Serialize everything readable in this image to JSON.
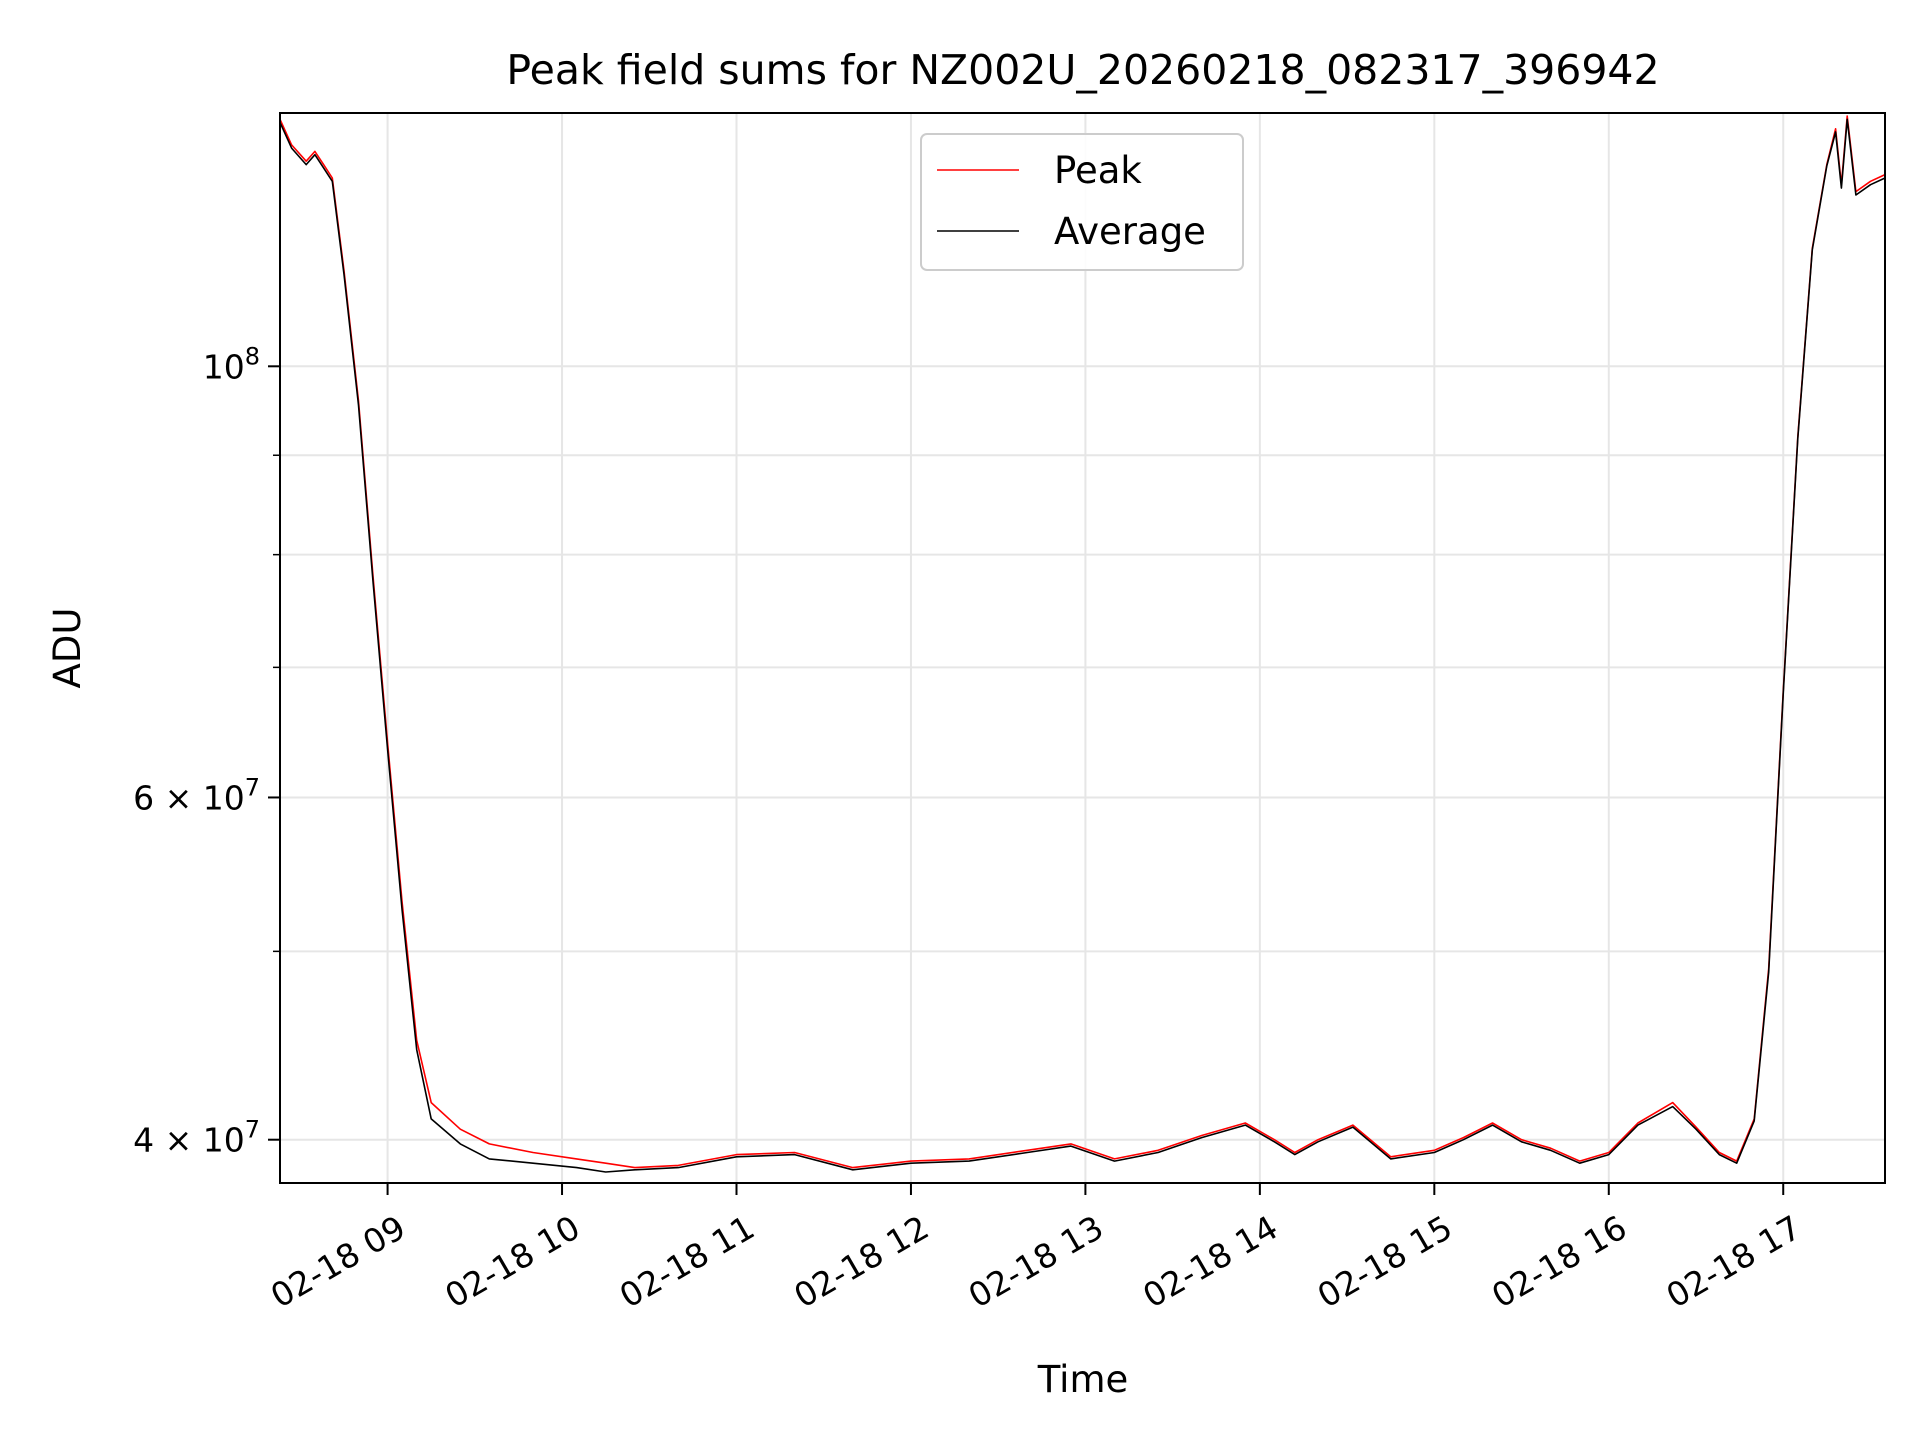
{
  "chart_data": {
    "type": "line",
    "title": "Peak field sums for NZ002U_20260218_082317_396942",
    "xlabel": "Time",
    "ylabel": "ADU",
    "y_scale": "log",
    "grid": true,
    "legend_position": "upper center",
    "x_range": [
      "2026-02-18 08:23",
      "2026-02-18 17:35"
    ],
    "y_range": [
      38000000,
      135000000
    ],
    "x_ticks": [
      {
        "value": "2026-02-18 09:00",
        "label": "02-18 09"
      },
      {
        "value": "2026-02-18 10:00",
        "label": "02-18 10"
      },
      {
        "value": "2026-02-18 11:00",
        "label": "02-18 11"
      },
      {
        "value": "2026-02-18 12:00",
        "label": "02-18 12"
      },
      {
        "value": "2026-02-18 13:00",
        "label": "02-18 13"
      },
      {
        "value": "2026-02-18 14:00",
        "label": "02-18 14"
      },
      {
        "value": "2026-02-18 15:00",
        "label": "02-18 15"
      },
      {
        "value": "2026-02-18 16:00",
        "label": "02-18 16"
      },
      {
        "value": "2026-02-18 17:00",
        "label": "02-18 17"
      }
    ],
    "y_ticks": [
      {
        "value": 40000000,
        "mantissa": "4",
        "times": "×",
        "base": "10",
        "exp": "7"
      },
      {
        "value": 60000000,
        "mantissa": "6",
        "times": "×",
        "base": "10",
        "exp": "7"
      },
      {
        "value": 100000000,
        "mantissa": "",
        "times": "",
        "base": "10",
        "exp": "8"
      }
    ],
    "y_minor_ticks": [
      50000000,
      70000000,
      80000000,
      90000000
    ],
    "series": [
      {
        "name": "Peak",
        "color": "#ff0000",
        "points": [
          [
            "2026-02-18 08:23",
            134000000
          ],
          [
            "2026-02-18 08:27",
            130000000
          ],
          [
            "2026-02-18 08:32",
            127500000
          ],
          [
            "2026-02-18 08:35",
            129000000
          ],
          [
            "2026-02-18 08:38",
            127000000
          ],
          [
            "2026-02-18 08:41",
            125000000
          ],
          [
            "2026-02-18 08:45",
            112000000
          ],
          [
            "2026-02-18 08:50",
            96000000
          ],
          [
            "2026-02-18 08:55",
            78000000
          ],
          [
            "2026-02-18 09:00",
            64000000
          ],
          [
            "2026-02-18 09:05",
            53000000
          ],
          [
            "2026-02-18 09:10",
            45000000
          ],
          [
            "2026-02-18 09:15",
            41800000
          ],
          [
            "2026-02-18 09:25",
            40500000
          ],
          [
            "2026-02-18 09:35",
            39800000
          ],
          [
            "2026-02-18 09:50",
            39400000
          ],
          [
            "2026-02-18 10:05",
            39100000
          ],
          [
            "2026-02-18 10:15",
            38900000
          ],
          [
            "2026-02-18 10:25",
            38700000
          ],
          [
            "2026-02-18 10:40",
            38800000
          ],
          [
            "2026-02-18 11:00",
            39300000
          ],
          [
            "2026-02-18 11:20",
            39400000
          ],
          [
            "2026-02-18 11:40",
            38700000
          ],
          [
            "2026-02-18 12:00",
            39000000
          ],
          [
            "2026-02-18 12:20",
            39100000
          ],
          [
            "2026-02-18 12:40",
            39500000
          ],
          [
            "2026-02-18 12:55",
            39800000
          ],
          [
            "2026-02-18 13:10",
            39100000
          ],
          [
            "2026-02-18 13:25",
            39500000
          ],
          [
            "2026-02-18 13:40",
            40200000
          ],
          [
            "2026-02-18 13:55",
            40800000
          ],
          [
            "2026-02-18 14:05",
            40000000
          ],
          [
            "2026-02-18 14:12",
            39400000
          ],
          [
            "2026-02-18 14:20",
            40000000
          ],
          [
            "2026-02-18 14:32",
            40700000
          ],
          [
            "2026-02-18 14:45",
            39200000
          ],
          [
            "2026-02-18 15:00",
            39500000
          ],
          [
            "2026-02-18 15:10",
            40100000
          ],
          [
            "2026-02-18 15:20",
            40800000
          ],
          [
            "2026-02-18 15:30",
            40000000
          ],
          [
            "2026-02-18 15:40",
            39600000
          ],
          [
            "2026-02-18 15:50",
            39000000
          ],
          [
            "2026-02-18 16:00",
            39400000
          ],
          [
            "2026-02-18 16:10",
            40800000
          ],
          [
            "2026-02-18 16:22",
            41800000
          ],
          [
            "2026-02-18 16:30",
            40600000
          ],
          [
            "2026-02-18 16:38",
            39400000
          ],
          [
            "2026-02-18 16:44",
            39000000
          ],
          [
            "2026-02-18 16:50",
            41000000
          ],
          [
            "2026-02-18 16:55",
            49000000
          ],
          [
            "2026-02-18 17:00",
            68000000
          ],
          [
            "2026-02-18 17:05",
            92000000
          ],
          [
            "2026-02-18 17:10",
            115000000
          ],
          [
            "2026-02-18 17:15",
            127000000
          ],
          [
            "2026-02-18 17:18",
            132500000
          ],
          [
            "2026-02-18 17:20",
            124000000
          ],
          [
            "2026-02-18 17:22",
            134500000
          ],
          [
            "2026-02-18 17:25",
            123000000
          ],
          [
            "2026-02-18 17:30",
            124500000
          ],
          [
            "2026-02-18 17:35",
            125500000
          ]
        ]
      },
      {
        "name": "Average",
        "color": "#000000",
        "points": [
          [
            "2026-02-18 08:23",
            133500000
          ],
          [
            "2026-02-18 08:27",
            129500000
          ],
          [
            "2026-02-18 08:32",
            127000000
          ],
          [
            "2026-02-18 08:35",
            128500000
          ],
          [
            "2026-02-18 08:38",
            126500000
          ],
          [
            "2026-02-18 08:41",
            124500000
          ],
          [
            "2026-02-18 08:45",
            111500000
          ],
          [
            "2026-02-18 08:50",
            95500000
          ],
          [
            "2026-02-18 08:55",
            77500000
          ],
          [
            "2026-02-18 09:00",
            63500000
          ],
          [
            "2026-02-18 09:05",
            52500000
          ],
          [
            "2026-02-18 09:10",
            44500000
          ],
          [
            "2026-02-18 09:15",
            41000000
          ],
          [
            "2026-02-18 09:25",
            39800000
          ],
          [
            "2026-02-18 09:35",
            39100000
          ],
          [
            "2026-02-18 09:50",
            38900000
          ],
          [
            "2026-02-18 10:05",
            38700000
          ],
          [
            "2026-02-18 10:15",
            38500000
          ],
          [
            "2026-02-18 10:25",
            38600000
          ],
          [
            "2026-02-18 10:40",
            38700000
          ],
          [
            "2026-02-18 11:00",
            39200000
          ],
          [
            "2026-02-18 11:20",
            39300000
          ],
          [
            "2026-02-18 11:40",
            38600000
          ],
          [
            "2026-02-18 12:00",
            38900000
          ],
          [
            "2026-02-18 12:20",
            39000000
          ],
          [
            "2026-02-18 12:40",
            39400000
          ],
          [
            "2026-02-18 12:55",
            39700000
          ],
          [
            "2026-02-18 13:10",
            39000000
          ],
          [
            "2026-02-18 13:25",
            39400000
          ],
          [
            "2026-02-18 13:40",
            40100000
          ],
          [
            "2026-02-18 13:55",
            40700000
          ],
          [
            "2026-02-18 14:05",
            39900000
          ],
          [
            "2026-02-18 14:12",
            39300000
          ],
          [
            "2026-02-18 14:20",
            39900000
          ],
          [
            "2026-02-18 14:32",
            40600000
          ],
          [
            "2026-02-18 14:45",
            39100000
          ],
          [
            "2026-02-18 15:00",
            39400000
          ],
          [
            "2026-02-18 15:10",
            40000000
          ],
          [
            "2026-02-18 15:20",
            40700000
          ],
          [
            "2026-02-18 15:30",
            39900000
          ],
          [
            "2026-02-18 15:40",
            39500000
          ],
          [
            "2026-02-18 15:50",
            38900000
          ],
          [
            "2026-02-18 16:00",
            39300000
          ],
          [
            "2026-02-18 16:10",
            40700000
          ],
          [
            "2026-02-18 16:22",
            41600000
          ],
          [
            "2026-02-18 16:30",
            40500000
          ],
          [
            "2026-02-18 16:38",
            39300000
          ],
          [
            "2026-02-18 16:44",
            38900000
          ],
          [
            "2026-02-18 16:50",
            40900000
          ],
          [
            "2026-02-18 16:55",
            48800000
          ],
          [
            "2026-02-18 17:00",
            67800000
          ],
          [
            "2026-02-18 17:05",
            91800000
          ],
          [
            "2026-02-18 17:10",
            114800000
          ],
          [
            "2026-02-18 17:15",
            126800000
          ],
          [
            "2026-02-18 17:18",
            132000000
          ],
          [
            "2026-02-18 17:20",
            123500000
          ],
          [
            "2026-02-18 17:22",
            134000000
          ],
          [
            "2026-02-18 17:25",
            122500000
          ],
          [
            "2026-02-18 17:30",
            124000000
          ],
          [
            "2026-02-18 17:35",
            125000000
          ]
        ]
      }
    ]
  }
}
